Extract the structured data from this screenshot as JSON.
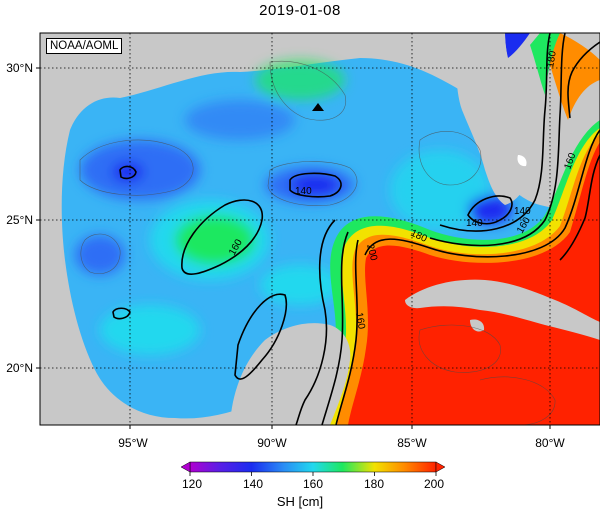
{
  "title": "2019-01-08",
  "source": "NOAA/AOML",
  "lat_labels": [
    "30°N",
    "25°N",
    "20°N"
  ],
  "lon_labels": [
    "95°W",
    "90°W",
    "85°W",
    "80°W"
  ],
  "contour_labels": [
    "140",
    "140",
    "140",
    "160",
    "160",
    "160",
    "180",
    "180",
    "200",
    "160"
  ],
  "colorbar": {
    "label": "SH [cm]",
    "tick_labels": [
      "120",
      "140",
      "160",
      "180",
      "200"
    ],
    "range": [
      120,
      200
    ]
  },
  "colors": {
    "land": "#c8c8c8",
    "dark_blue": "#1a2cf0",
    "blue": "#2f6ef5",
    "light_blue": "#3ab4f5",
    "cyan": "#22d8ee",
    "green": "#1ee860",
    "bright_green": "#22f034",
    "yellow": "#f2e200",
    "orange": "#ff8c00",
    "red": "#ff2200"
  },
  "marker": "filled-triangle"
}
